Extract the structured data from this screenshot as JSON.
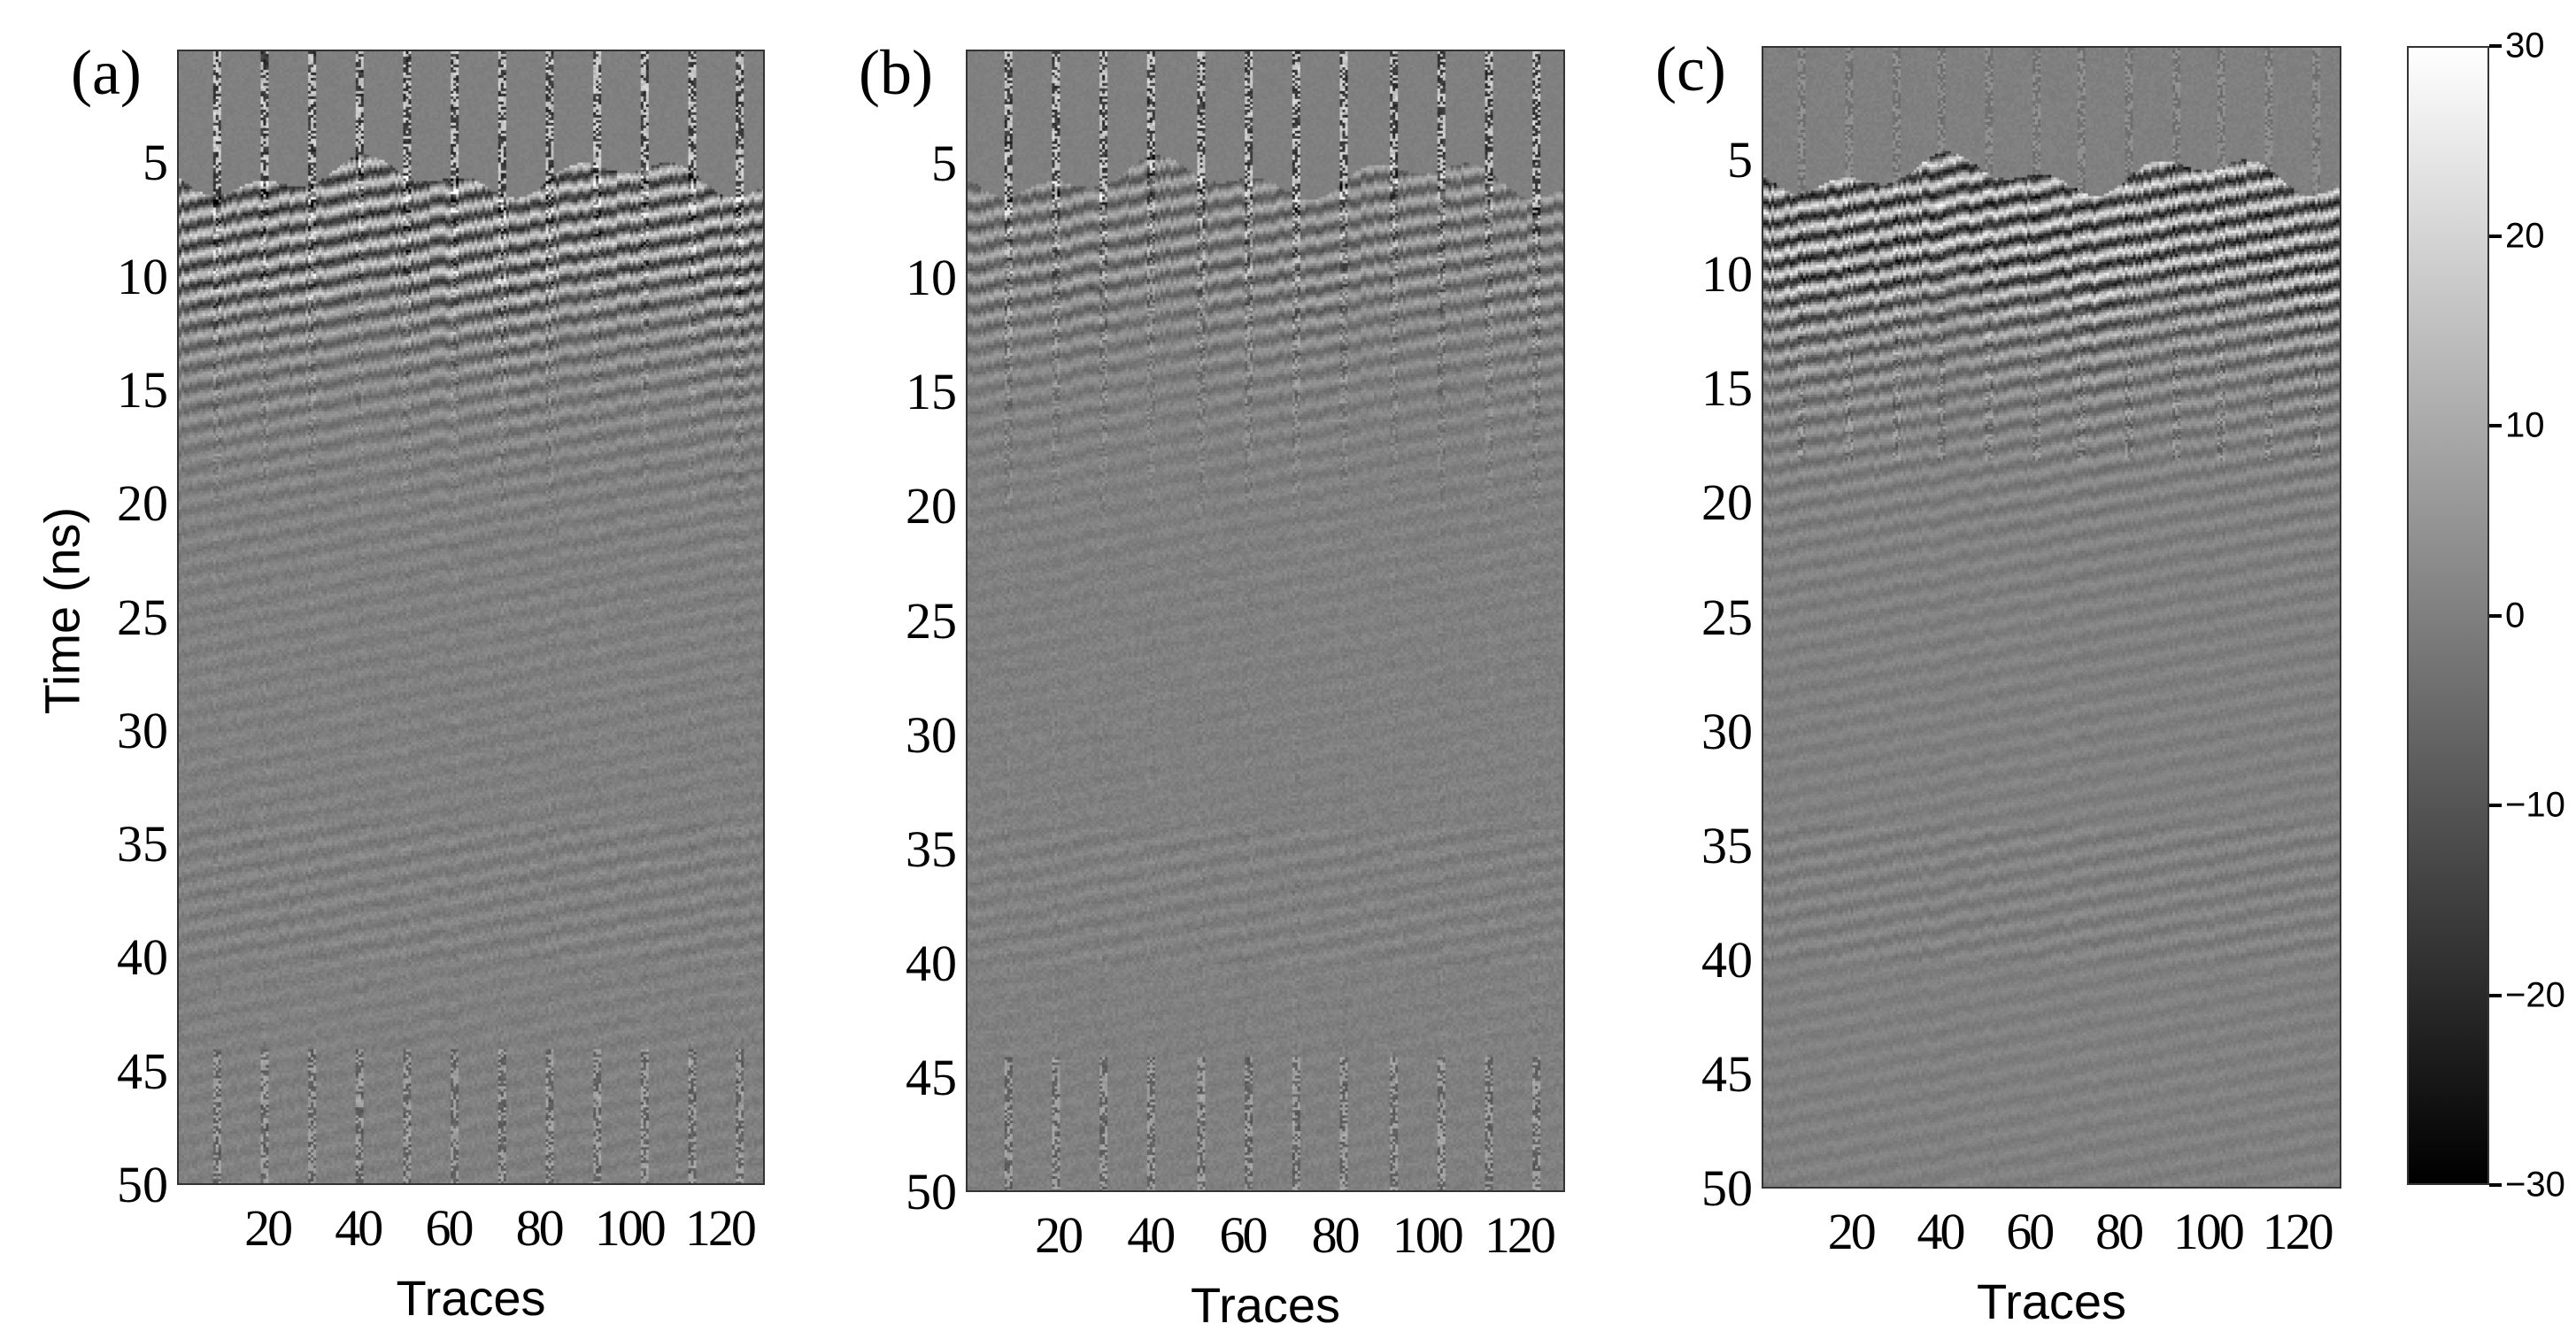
{
  "chart_data": [
    {
      "type": "heatmap",
      "panel_label": "(a)",
      "xlabel": "Traces",
      "ylabel": "Time (ns)",
      "xlim": [
        0,
        130
      ],
      "ylim": [
        50,
        0
      ],
      "xticks": [
        20,
        40,
        60,
        80,
        100,
        120
      ],
      "yticks": [
        5,
        10,
        15,
        20,
        25,
        30,
        35,
        40,
        45,
        50
      ],
      "colormap": "gray",
      "style": "raw"
    },
    {
      "type": "heatmap",
      "panel_label": "(b)",
      "xlabel": "Traces",
      "ylabel": "",
      "xlim": [
        0,
        130
      ],
      "ylim": [
        50,
        0
      ],
      "xticks": [
        20,
        40,
        60,
        80,
        100,
        120
      ],
      "yticks": [
        5,
        10,
        15,
        20,
        25,
        30,
        35,
        40,
        45,
        50
      ],
      "colormap": "gray",
      "style": "stripes"
    },
    {
      "type": "heatmap",
      "panel_label": "(c)",
      "xlabel": "Traces",
      "ylabel": "",
      "xlim": [
        0,
        130
      ],
      "ylim": [
        50,
        0
      ],
      "xticks": [
        20,
        40,
        60,
        80,
        100,
        120
      ],
      "yticks": [
        5,
        10,
        15,
        20,
        25,
        30,
        35,
        40,
        45,
        50
      ],
      "colormap": "gray",
      "style": "clean"
    }
  ],
  "colorbar": {
    "range": [
      -30,
      30
    ],
    "ticks": [
      30,
      20,
      10,
      0,
      -10,
      -20,
      -30
    ],
    "labels": [
      "30",
      "20",
      "10",
      "0",
      "−10",
      "−20",
      "−30"
    ]
  }
}
